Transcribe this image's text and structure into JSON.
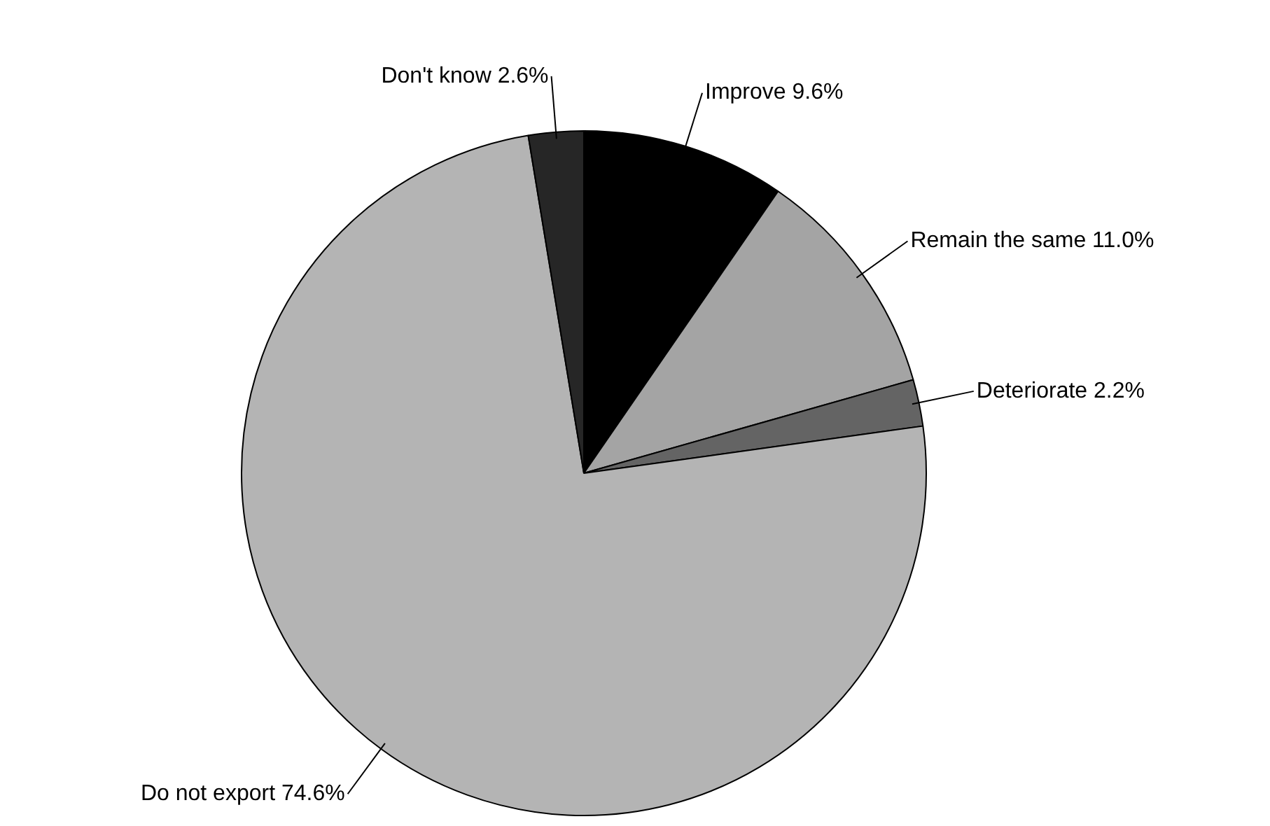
{
  "chart_data": {
    "type": "pie",
    "categories": [
      "Improve",
      "Remain the same",
      "Deteriorate",
      "Do not export",
      "Don't know"
    ],
    "values": [
      9.6,
      11.0,
      2.2,
      74.6,
      2.6
    ],
    "value_labels": [
      "9.6%",
      "11.0%",
      "2.2%",
      "74.6%",
      "2.6%"
    ],
    "colors": [
      "#000000",
      "#a4a4a4",
      "#646464",
      "#b4b4b4",
      "#262626"
    ],
    "legend": false
  }
}
